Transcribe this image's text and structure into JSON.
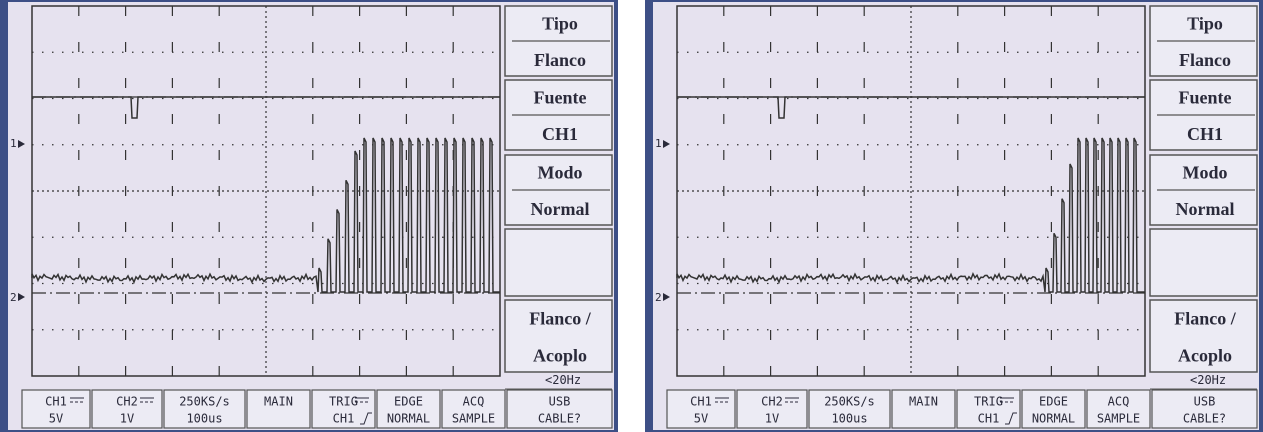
{
  "screens": [
    {
      "menu": [
        [
          "Tipo",
          "Flanco"
        ],
        [
          "Fuente",
          "CH1"
        ],
        [
          "Modo",
          "Normal"
        ],
        [
          "Flanco /",
          "Acoplo"
        ]
      ],
      "markers": [
        "1",
        "2"
      ],
      "freq": "<20Hz",
      "status": [
        [
          "CH1",
          "5V"
        ],
        [
          "CH2",
          "1V"
        ],
        [
          "250KS/s",
          "100us"
        ],
        [
          "MAIN"
        ],
        [
          "TRIG",
          "CH1"
        ],
        [
          "EDGE",
          "NORMAL"
        ],
        [
          "ACQ",
          "SAMPLE"
        ],
        [
          "USB",
          "CABLE?"
        ]
      ]
    },
    {
      "menu": [
        [
          "Tipo",
          "Flanco"
        ],
        [
          "Fuente",
          "CH1"
        ],
        [
          "Modo",
          "Normal"
        ],
        [
          "Flanco /",
          "Acoplo"
        ]
      ],
      "markers": [
        "1",
        "2"
      ],
      "freq": "<20Hz",
      "status": [
        [
          "CH1",
          "5V"
        ],
        [
          "CH2",
          "1V"
        ],
        [
          "250KS/s",
          "100us"
        ],
        [
          "MAIN"
        ],
        [
          "TRIG",
          "CH1"
        ],
        [
          "EDGE",
          "NORMAL"
        ],
        [
          "ACQ",
          "SAMPLE"
        ],
        [
          "USB",
          "CABLE?"
        ]
      ]
    }
  ]
}
